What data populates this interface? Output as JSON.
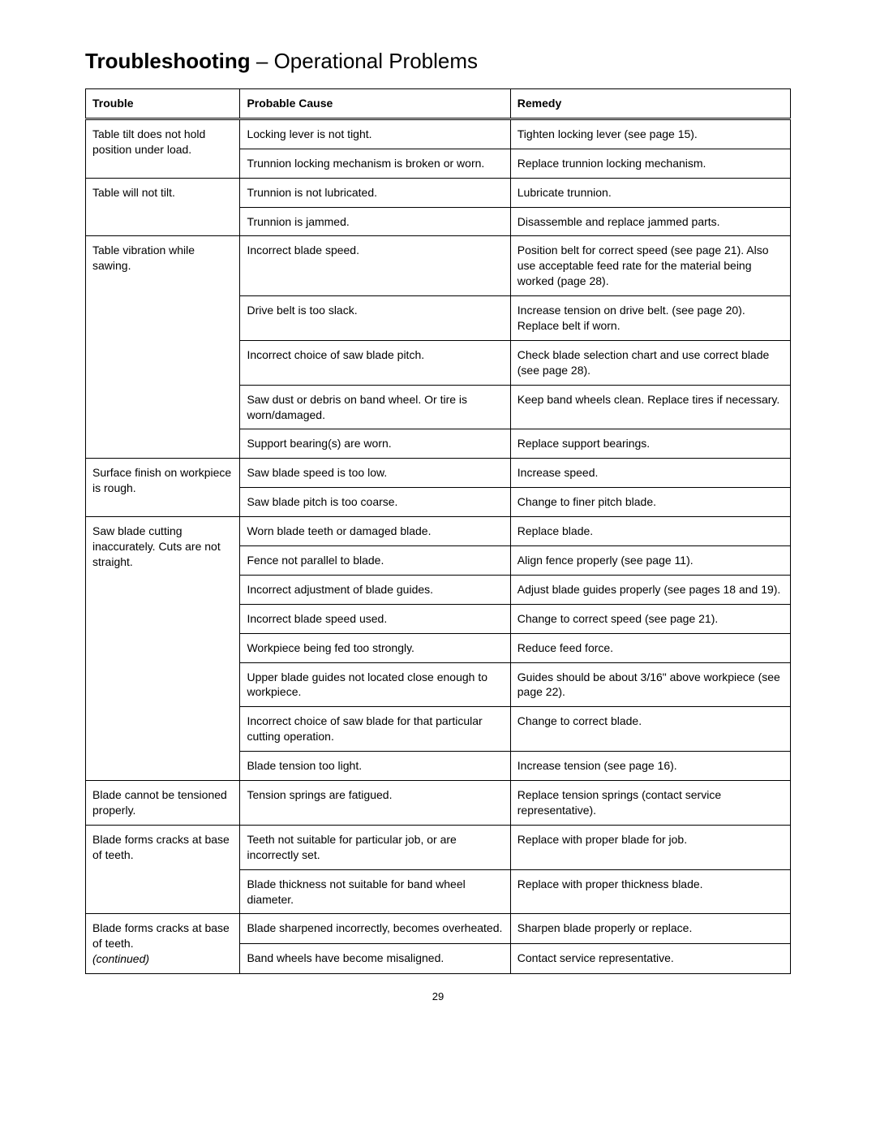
{
  "meta": {
    "page_number": "29"
  },
  "title": {
    "bold": "Troubleshooting",
    "sep": " – ",
    "rest": "Operational Problems"
  },
  "table": {
    "columns": [
      "Trouble",
      "Probable Cause",
      "Remedy"
    ],
    "groups": [
      {
        "trouble": "Table tilt does not hold position under load.",
        "rows": [
          {
            "cause": "Locking lever is not tight.",
            "remedy": "Tighten locking lever (see page 15)."
          },
          {
            "cause": "Trunnion locking mechanism is broken or worn.",
            "remedy": "Replace trunnion locking mechanism."
          }
        ]
      },
      {
        "trouble": "Table will not tilt.",
        "rows": [
          {
            "cause": "Trunnion is not lubricated.",
            "remedy": "Lubricate trunnion."
          },
          {
            "cause": "Trunnion is jammed.",
            "remedy": "Disassemble and replace jammed parts."
          }
        ]
      },
      {
        "trouble": "Table vibration while sawing.",
        "rows": [
          {
            "cause": "Incorrect blade speed.",
            "remedy": "Position belt for correct speed (see page 21). Also use acceptable feed rate for the material being worked (page 28)."
          },
          {
            "cause": "Drive belt is too slack.",
            "remedy": "Increase tension on drive belt. (see page 20). Replace belt if worn."
          },
          {
            "cause": "Incorrect choice of saw blade pitch.",
            "remedy": "Check blade selection chart and use correct blade (see page 28)."
          },
          {
            "cause": "Saw dust or debris on band wheel. Or tire is worn/damaged.",
            "remedy": "Keep band wheels clean. Replace tires if necessary."
          },
          {
            "cause": "Support bearing(s) are worn.",
            "remedy": "Replace support bearings."
          }
        ]
      },
      {
        "trouble": "Surface finish on workpiece is rough.",
        "rows": [
          {
            "cause": "Saw blade speed is too low.",
            "remedy": "Increase speed."
          },
          {
            "cause": "Saw blade pitch is too coarse.",
            "remedy": "Change to finer pitch blade."
          }
        ]
      },
      {
        "trouble": "Saw blade cutting inaccurately. Cuts are not straight.",
        "rows": [
          {
            "cause": "Worn blade teeth or damaged blade.",
            "remedy": "Replace blade."
          },
          {
            "cause": "Fence not parallel to blade.",
            "remedy": "Align fence properly (see page 11)."
          },
          {
            "cause": "Incorrect adjustment of blade guides.",
            "remedy": "Adjust blade guides properly (see pages 18 and 19)."
          },
          {
            "cause": "Incorrect blade speed used.",
            "remedy": "Change to correct speed (see page 21)."
          },
          {
            "cause": "Workpiece being fed too strongly.",
            "remedy": "Reduce feed force."
          },
          {
            "cause": "Upper blade guides not located close enough to workpiece.",
            "remedy": "Guides should be about 3/16\" above workpiece (see page 22)."
          },
          {
            "cause": "Incorrect choice of saw blade for that particular cutting operation.",
            "remedy": "Change to correct blade."
          },
          {
            "cause": "Blade tension too light.",
            "remedy": "Increase tension (see page 16)."
          }
        ]
      },
      {
        "trouble": "Blade cannot be tensioned properly.",
        "rows": [
          {
            "cause": "Tension springs are fatigued.",
            "remedy": "Replace tension springs (contact service representative)."
          }
        ]
      },
      {
        "trouble": "Blade forms cracks at base of teeth.",
        "rows": [
          {
            "cause": "Teeth not suitable for particular job, or are incorrectly set.",
            "remedy": "Replace with proper blade for job."
          },
          {
            "cause": "Blade thickness not suitable for band wheel diameter.",
            "remedy": "Replace with proper thickness blade."
          }
        ]
      },
      {
        "trouble": "Blade forms cracks at base of teeth.",
        "trouble_suffix_italic": "(continued)",
        "rows": [
          {
            "cause": "Blade sharpened incorrectly, becomes overheated.",
            "remedy": "Sharpen blade properly or replace."
          },
          {
            "cause": "Band wheels have become misaligned.",
            "remedy": "Contact service representative."
          }
        ]
      }
    ]
  }
}
